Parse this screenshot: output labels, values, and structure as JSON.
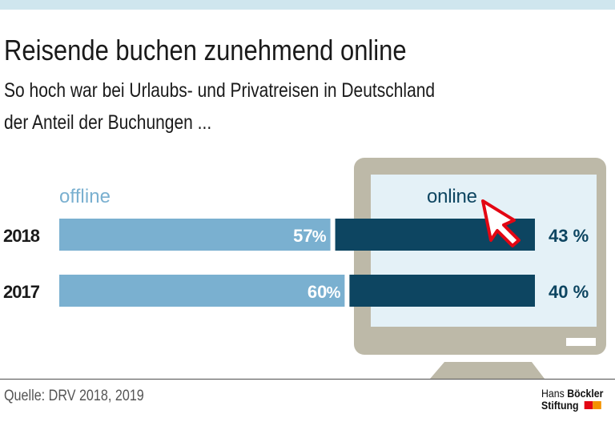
{
  "title": "Reisende buchen zunehmend online",
  "subtitle_lines": [
    "So hoch war bei Urlaubs- und Privatreisen in Deutschland",
    "der Anteil der Buchungen ..."
  ],
  "source": "Quelle: DRV 2018, 2019",
  "logo": {
    "line1a": "Hans ",
    "line1b": "Böckler",
    "line2": "Stiftung",
    "colors": [
      "#e30613",
      "#f39200"
    ]
  },
  "chart_data": {
    "type": "bar",
    "orientation": "horizontal",
    "stacked": true,
    "categories": [
      "2018",
      "2017"
    ],
    "series": [
      {
        "name": "offline",
        "values": [
          57,
          60
        ],
        "labels": [
          "57 %",
          "60 %"
        ],
        "color": "#7ab0d0"
      },
      {
        "name": "online",
        "values": [
          43,
          40
        ],
        "labels": [
          "43 %",
          "40 %"
        ],
        "color": "#0d4561"
      }
    ],
    "xlim": [
      0,
      100
    ],
    "grid": false,
    "decoration": "computer-monitor-with-cursor",
    "colors": {
      "monitor": "#bdb9a8",
      "screen": "#e4f1f7",
      "cursor": "#e30613"
    }
  }
}
